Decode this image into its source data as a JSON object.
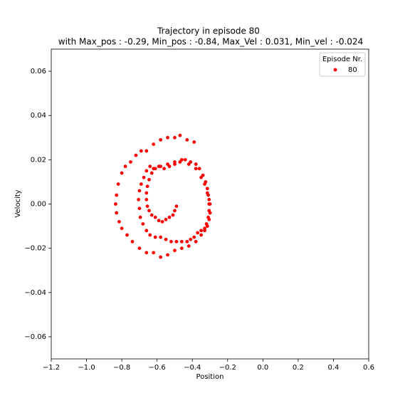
{
  "chart_data": {
    "type": "scatter",
    "title": "Trajectory in episode 80",
    "subtitle": "with Max_pos : -0.29, Min_pos : -0.84, Max_Vel : 0.031, Min_vel : -0.024",
    "x_label": "Position",
    "y_label": "Velocity",
    "legend_title": "Episode Nr.",
    "legend": "upper right",
    "xlim": [
      -1.2,
      0.6
    ],
    "ylim": [
      -0.07,
      0.07
    ],
    "xticks": [
      {
        "value": -1.2,
        "label": "−1.2"
      },
      {
        "value": -1.0,
        "label": "−1.0"
      },
      {
        "value": -0.8,
        "label": "−0.8"
      },
      {
        "value": -0.6,
        "label": "−0.6"
      },
      {
        "value": -0.4,
        "label": "−0.4"
      },
      {
        "value": -0.2,
        "label": "−0.2"
      },
      {
        "value": 0.0,
        "label": "0.0"
      },
      {
        "value": 0.2,
        "label": "0.2"
      },
      {
        "value": 0.4,
        "label": "0.4"
      },
      {
        "value": 0.6,
        "label": "0.6"
      }
    ],
    "yticks": [
      {
        "value": -0.06,
        "label": "−0.06"
      },
      {
        "value": -0.04,
        "label": "−0.04"
      },
      {
        "value": -0.02,
        "label": "−0.02"
      },
      {
        "value": 0.0,
        "label": "0.00"
      },
      {
        "value": 0.02,
        "label": "0.02"
      },
      {
        "value": 0.04,
        "label": "0.04"
      },
      {
        "value": 0.06,
        "label": "0.06"
      }
    ],
    "series": [
      {
        "name": "80",
        "color": "#ff0000",
        "x": [
          -0.49,
          -0.5,
          -0.51,
          -0.53,
          -0.55,
          -0.57,
          -0.59,
          -0.61,
          -0.63,
          -0.645,
          -0.655,
          -0.66,
          -0.66,
          -0.655,
          -0.645,
          -0.63,
          -0.61,
          -0.59,
          -0.56,
          -0.53,
          -0.5,
          -0.47,
          -0.44,
          -0.41,
          -0.38,
          -0.36,
          -0.34,
          -0.325,
          -0.315,
          -0.31,
          -0.305,
          -0.305,
          -0.31,
          -0.32,
          -0.33,
          -0.35,
          -0.37,
          -0.39,
          -0.41,
          -0.43,
          -0.46,
          -0.49,
          -0.52,
          -0.55,
          -0.58,
          -0.61,
          -0.64,
          -0.66,
          -0.68,
          -0.695,
          -0.7,
          -0.705,
          -0.7,
          -0.69,
          -0.675,
          -0.66,
          -0.64,
          -0.62,
          -0.58,
          -0.54,
          -0.5,
          -0.46,
          -0.42,
          -0.38,
          -0.35,
          -0.33,
          -0.315,
          -0.305,
          -0.3,
          -0.3,
          -0.305,
          -0.315,
          -0.33,
          -0.35,
          -0.38,
          -0.42,
          -0.46,
          -0.5,
          -0.54,
          -0.58,
          -0.62,
          -0.66,
          -0.7,
          -0.74,
          -0.77,
          -0.8,
          -0.815,
          -0.83,
          -0.835,
          -0.83,
          -0.82,
          -0.8,
          -0.78,
          -0.75,
          -0.72,
          -0.69,
          -0.66,
          -0.62,
          -0.58,
          -0.54,
          -0.5,
          -0.47,
          -0.43,
          -0.39
        ],
        "y": [
          -0.001,
          -0.003,
          -0.005,
          -0.006,
          -0.007,
          -0.008,
          -0.0075,
          -0.006,
          -0.005,
          -0.003,
          -0.001,
          0.002,
          0.005,
          0.008,
          0.011,
          0.014,
          0.016,
          0.017,
          0.016,
          0.017,
          0.018,
          0.019,
          0.02,
          0.019,
          0.018,
          0.016,
          0.013,
          0.01,
          0.007,
          0.004,
          0.0,
          -0.003,
          -0.006,
          -0.009,
          -0.011,
          -0.012,
          -0.013,
          -0.015,
          -0.016,
          -0.017,
          -0.017,
          -0.017,
          -0.017,
          -0.016,
          -0.015,
          -0.015,
          -0.014,
          -0.012,
          -0.009,
          -0.006,
          -0.002,
          0.002,
          0.006,
          0.009,
          0.012,
          0.015,
          0.017,
          0.016,
          0.017,
          0.018,
          0.019,
          0.02,
          0.018,
          0.016,
          0.012,
          0.009,
          0.005,
          0.002,
          0.0,
          -0.004,
          -0.007,
          -0.01,
          -0.012,
          -0.014,
          -0.017,
          -0.019,
          -0.02,
          -0.021,
          -0.023,
          -0.024,
          -0.022,
          -0.022,
          -0.02,
          -0.017,
          -0.014,
          -0.011,
          -0.008,
          -0.004,
          0.0,
          0.004,
          0.009,
          0.014,
          0.017,
          0.019,
          0.022,
          0.024,
          0.024,
          0.027,
          0.029,
          0.03,
          0.03,
          0.031,
          0.029,
          0.028
        ]
      }
    ]
  }
}
